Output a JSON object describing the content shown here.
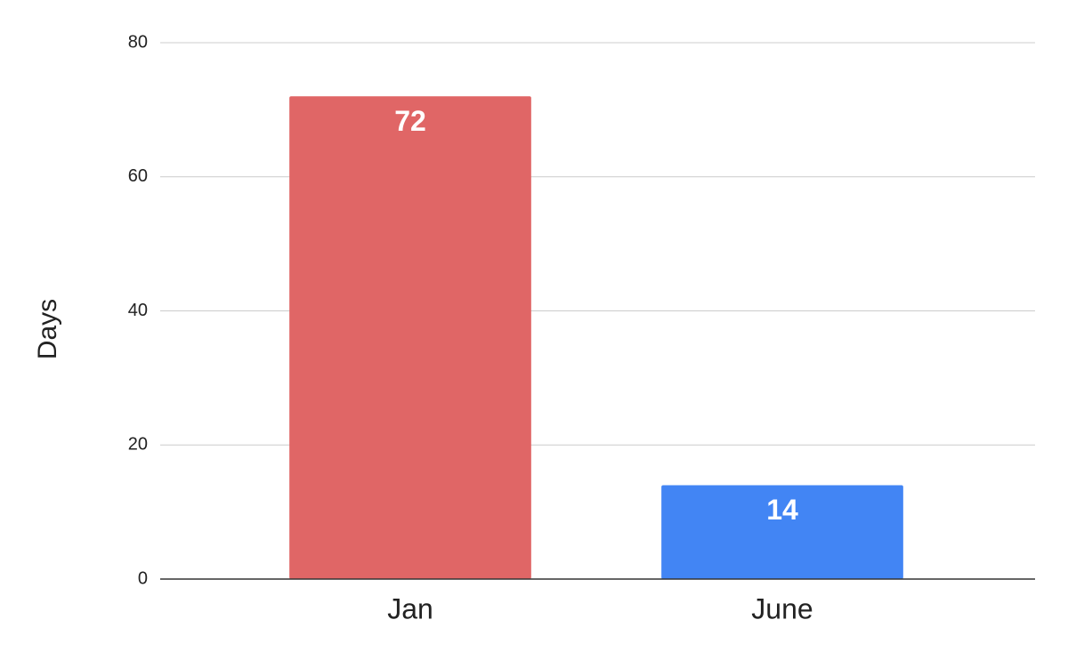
{
  "chart_data": {
    "type": "bar",
    "y_label": "Days",
    "categories": [
      "Jan",
      "June"
    ],
    "values": [
      72,
      14
    ],
    "colors": [
      "#e06666",
      "#4285f4"
    ],
    "ylim": [
      0,
      80
    ],
    "yticks": [
      0,
      20,
      40,
      60,
      80
    ],
    "grid": true
  }
}
